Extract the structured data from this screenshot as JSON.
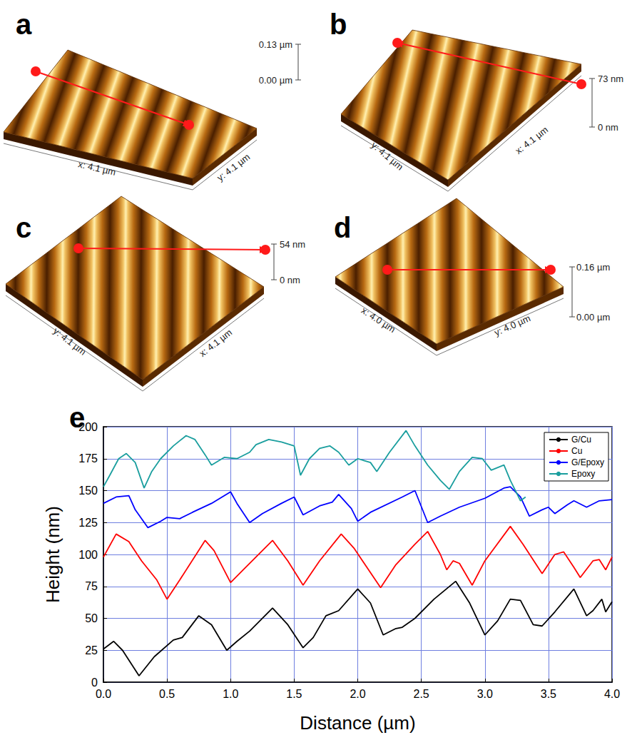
{
  "panels": [
    {
      "letter": "a",
      "x_label": "x: 4.1 µm",
      "y_label": "y: 4.1 µm",
      "scale_max": "0.13 µm",
      "scale_min": "0.00 µm"
    },
    {
      "letter": "b",
      "x_label": "x: 4.1 µm",
      "y_label": "y: 4.1 µm",
      "scale_max": "73 nm",
      "scale_min": "0 nm"
    },
    {
      "letter": "c",
      "x_label": "x: 4.1 µm",
      "y_label": "y: 4.1 µm",
      "scale_max": "54 nm",
      "scale_min": "0 nm"
    },
    {
      "letter": "d",
      "x_label": "x: 4.0 µm",
      "y_label": "y: 4.0 µm",
      "scale_max": "0.16 µm",
      "scale_min": "0.00 µm"
    }
  ],
  "chart_data": {
    "type": "line",
    "panel": "e",
    "x_label": "Distance (µm)",
    "y_label": "Height (nm)",
    "xlim": [
      0,
      4
    ],
    "xticks": [
      {
        "value": 0,
        "label": "0.0"
      },
      {
        "value": 0.5,
        "label": "0.5"
      },
      {
        "value": 1,
        "label": "1.0"
      },
      {
        "value": 1.5,
        "label": "1.5"
      },
      {
        "value": 2,
        "label": "2.0"
      },
      {
        "value": 2.5,
        "label": "2.5"
      },
      {
        "value": 3,
        "label": "3.0"
      },
      {
        "value": 3.5,
        "label": "3.5"
      },
      {
        "value": 4,
        "label": "4.0"
      }
    ],
    "ylim": [
      0,
      200
    ],
    "yticks": [
      0,
      25,
      50,
      75,
      100,
      125,
      150,
      175,
      200
    ],
    "grid": true,
    "legend": "upper right",
    "series": [
      {
        "name": "G/Cu",
        "color": "#000000",
        "x": [
          0,
          0.08,
          0.15,
          0.28,
          0.4,
          0.55,
          0.62,
          0.75,
          0.85,
          0.97,
          1.05,
          1.15,
          1.33,
          1.45,
          1.57,
          1.65,
          1.75,
          1.85,
          2.0,
          2.1,
          2.2,
          2.3,
          2.35,
          2.45,
          2.6,
          2.77,
          2.88,
          3.0,
          3.1,
          3.2,
          3.28,
          3.38,
          3.45,
          3.55,
          3.7,
          3.8,
          3.85,
          3.92,
          3.95,
          4.0
        ],
        "values": [
          26,
          32,
          25,
          5,
          20,
          33,
          35,
          52,
          45,
          25,
          32,
          40,
          58,
          45,
          27,
          35,
          52,
          56,
          73,
          62,
          37,
          42,
          43,
          50,
          65,
          79,
          62,
          37,
          48,
          65,
          64,
          45,
          44,
          55,
          73,
          52,
          56,
          65,
          55,
          63
        ]
      },
      {
        "name": "Cu",
        "color": "#ff0000",
        "x": [
          0,
          0.1,
          0.2,
          0.3,
          0.42,
          0.5,
          0.6,
          0.8,
          0.87,
          1.0,
          1.1,
          1.33,
          1.45,
          1.57,
          1.7,
          1.87,
          1.97,
          2.18,
          2.3,
          2.45,
          2.55,
          2.65,
          2.7,
          2.75,
          2.8,
          2.9,
          3.0,
          3.2,
          3.3,
          3.45,
          3.55,
          3.62,
          3.7,
          3.75,
          3.85,
          3.9,
          3.95,
          4.0
        ],
        "values": [
          98,
          116,
          110,
          95,
          80,
          65,
          80,
          111,
          103,
          78,
          88,
          111,
          95,
          76,
          95,
          116,
          105,
          74,
          92,
          108,
          118,
          100,
          88,
          95,
          93,
          76,
          95,
          122,
          108,
          85,
          100,
          102,
          90,
          82,
          95,
          96,
          88,
          98
        ]
      },
      {
        "name": "G/Epoxy",
        "color": "#0000ff",
        "x": [
          0,
          0.1,
          0.2,
          0.25,
          0.35,
          0.45,
          0.5,
          0.6,
          0.7,
          0.85,
          1.0,
          1.05,
          1.15,
          1.25,
          1.4,
          1.5,
          1.57,
          1.7,
          1.8,
          1.85,
          1.95,
          2.0,
          2.1,
          2.35,
          2.45,
          2.55,
          2.65,
          2.8,
          3.0,
          3.15,
          3.2,
          3.28,
          3.35,
          3.45,
          3.5,
          3.55,
          3.65,
          3.7,
          3.8,
          3.9,
          4.0
        ],
        "values": [
          140,
          145,
          146,
          135,
          121,
          126,
          129,
          128,
          133,
          140,
          149,
          140,
          125,
          132,
          140,
          145,
          131,
          138,
          141,
          147,
          136,
          126,
          133,
          145,
          150,
          125,
          130,
          137,
          144,
          152,
          153,
          145,
          130,
          135,
          137,
          132,
          139,
          142,
          137,
          142,
          143
        ]
      },
      {
        "name": "Epoxy",
        "color": "#1a9e9e",
        "x": [
          0,
          0.05,
          0.12,
          0.18,
          0.25,
          0.32,
          0.38,
          0.45,
          0.55,
          0.65,
          0.72,
          0.8,
          0.85,
          0.95,
          1.05,
          1.15,
          1.2,
          1.3,
          1.4,
          1.5,
          1.55,
          1.62,
          1.7,
          1.78,
          1.85,
          1.93,
          2.0,
          2.1,
          2.15,
          2.25,
          2.38,
          2.45,
          2.55,
          2.65,
          2.72,
          2.8,
          2.9,
          2.98,
          3.05,
          3.15,
          3.2,
          3.28,
          3.32
        ],
        "values": [
          153,
          162,
          175,
          179,
          172,
          152,
          165,
          175,
          185,
          193,
          190,
          178,
          170,
          176,
          175,
          180,
          186,
          190,
          188,
          185,
          162,
          175,
          183,
          185,
          180,
          170,
          175,
          172,
          165,
          180,
          197,
          185,
          170,
          158,
          151,
          165,
          176,
          175,
          166,
          170,
          158,
          142,
          145
        ]
      }
    ]
  }
}
